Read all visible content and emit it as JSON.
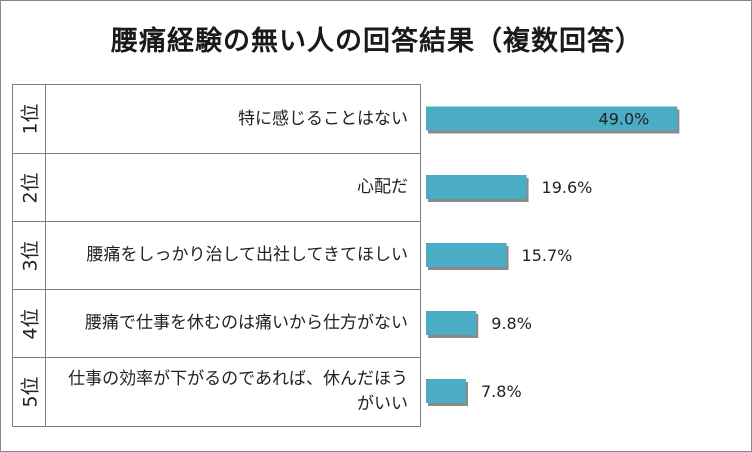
{
  "title": "腰痛経験の無い人の回答結果（複数回答）",
  "colors": {
    "bar": "#4bacc6",
    "bar_shadow": "#8a8a8a",
    "grid": "#7f7f7f",
    "text": "#222222"
  },
  "rows": [
    {
      "rank": "1位",
      "label": "特に感じることはない"
    },
    {
      "rank": "2位",
      "label": "心配だ"
    },
    {
      "rank": "3位",
      "label": "腰痛をしっかり治して出社してきてほしい"
    },
    {
      "rank": "4位",
      "label": "腰痛で仕事を休むのは痛いから仕方がない"
    },
    {
      "rank": "5位",
      "label": "仕事の効率が下がるのであれば、休んだほうがいい"
    }
  ],
  "chart_data": {
    "type": "bar",
    "orientation": "horizontal",
    "categories": [
      "特に感じることはない",
      "心配だ",
      "腰痛をしっかり治して出社してきてほしい",
      "腰痛で仕事を休むのは痛いから仕方がない",
      "仕事の効率が下がるのであれば、休んだほうがいい"
    ],
    "values": [
      49.0,
      19.6,
      15.7,
      9.8,
      7.8
    ],
    "data_labels": [
      "49.0%",
      "19.6%",
      "15.7%",
      "9.8%",
      "7.8%"
    ],
    "title": "腰痛経験の無い人の回答結果（複数回答）",
    "xlabel": "",
    "ylabel": "",
    "xlim": [
      0,
      100
    ],
    "grid": false,
    "legend": "none"
  }
}
